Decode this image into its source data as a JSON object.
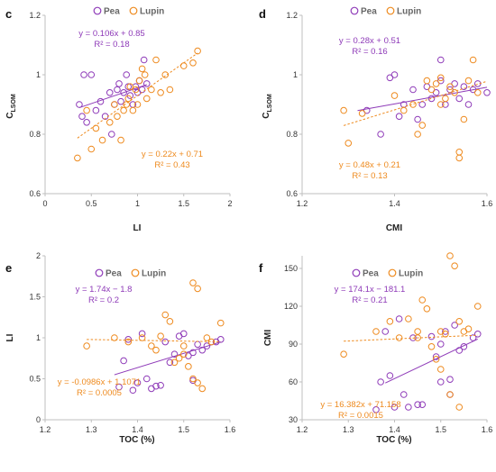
{
  "colors": {
    "pea": "#8e3ab8",
    "lupin": "#ee8a1e",
    "axis": "#bfbfbf"
  },
  "chart_data": [
    {
      "panel": "c",
      "type": "scatter",
      "xlabel": "LI",
      "ylabel": "C",
      "ylabel_sub": "LSOM",
      "xlim": [
        0,
        2
      ],
      "ylim": [
        0.6,
        1.2
      ],
      "xticks": [
        "0",
        "0.5",
        "1",
        "1.5",
        "2"
      ],
      "xtick_values": [
        0,
        0.5,
        1,
        1.5,
        2
      ],
      "yticks": [
        "0.6",
        "0.8",
        "1",
        "1.2"
      ],
      "ytick_values": [
        0.6,
        0.8,
        1,
        1.2
      ],
      "legend": [
        "Pea",
        "Lupin"
      ],
      "series": [
        {
          "name": "Pea",
          "color": "#8e3ab8",
          "x": [
            0.37,
            0.4,
            0.42,
            0.45,
            0.5,
            0.55,
            0.6,
            0.65,
            0.7,
            0.72,
            0.75,
            0.78,
            0.8,
            0.82,
            0.85,
            0.88,
            0.9,
            0.92,
            0.95,
            0.98,
            1.0,
            1.02,
            1.05,
            1.07,
            1.1
          ],
          "y": [
            0.9,
            0.86,
            1.0,
            0.84,
            1.0,
            0.88,
            0.91,
            0.86,
            0.94,
            0.8,
            0.9,
            0.95,
            0.97,
            0.91,
            0.94,
            1.0,
            0.96,
            0.93,
            0.9,
            0.96,
            0.94,
            0.98,
            0.95,
            1.05,
            0.97
          ],
          "fit": {
            "slope": 0.106,
            "intercept": 0.85,
            "x_range": [
              0.37,
              1.1
            ]
          },
          "equation": "y = 0.106x + 0.85",
          "r2": "R² = 0.18"
        },
        {
          "name": "Lupin",
          "color": "#ee8a1e",
          "x": [
            0.35,
            0.45,
            0.5,
            0.55,
            0.62,
            0.7,
            0.75,
            0.78,
            0.82,
            0.85,
            0.88,
            0.9,
            0.92,
            0.95,
            0.98,
            1.0,
            1.02,
            1.05,
            1.08,
            1.1,
            1.15,
            1.2,
            1.25,
            1.3,
            1.35,
            1.5,
            1.6,
            1.65
          ],
          "y": [
            0.72,
            0.88,
            0.75,
            0.82,
            0.78,
            0.84,
            0.9,
            0.86,
            0.78,
            0.88,
            0.9,
            0.92,
            0.96,
            0.88,
            0.95,
            0.9,
            0.98,
            1.02,
            1.0,
            0.92,
            0.95,
            1.05,
            0.94,
            1.0,
            0.95,
            1.03,
            1.04,
            1.08
          ],
          "fit": {
            "slope": 0.22,
            "intercept": 0.71,
            "x_range": [
              0.35,
              1.65
            ]
          },
          "equation": "y = 0.22x + 0.71",
          "r2": "R² = 0.43"
        }
      ]
    },
    {
      "panel": "d",
      "type": "scatter",
      "xlabel": "CMI",
      "ylabel": "C",
      "ylabel_sub": "LSOM",
      "xlim": [
        1.2,
        1.6
      ],
      "ylim": [
        0.6,
        1.2
      ],
      "xticks": [
        "1.2",
        "1.4",
        "1.6"
      ],
      "xtick_values": [
        1.2,
        1.4,
        1.6
      ],
      "yticks": [
        "0.6",
        "0.8",
        "1",
        "1.2"
      ],
      "ytick_values": [
        0.6,
        0.8,
        1,
        1.2
      ],
      "legend": [
        "Pea",
        "Lupin"
      ],
      "series": [
        {
          "name": "Pea",
          "color": "#8e3ab8",
          "x": [
            1.34,
            1.37,
            1.39,
            1.4,
            1.41,
            1.42,
            1.44,
            1.45,
            1.46,
            1.47,
            1.48,
            1.49,
            1.5,
            1.5,
            1.51,
            1.52,
            1.53,
            1.54,
            1.55,
            1.56,
            1.57,
            1.58,
            1.6
          ],
          "y": [
            0.88,
            0.8,
            0.99,
            1.0,
            0.86,
            0.9,
            0.95,
            0.85,
            0.9,
            0.96,
            0.92,
            0.94,
            0.98,
            1.05,
            0.9,
            0.95,
            0.97,
            0.92,
            0.96,
            0.9,
            0.95,
            0.97,
            0.94
          ],
          "fit": {
            "slope": 0.28,
            "intercept": 0.51,
            "x_range": [
              1.32,
              1.6
            ]
          },
          "equation": "y = 0.28x + 0.51",
          "r2": "R² = 0.16"
        },
        {
          "name": "Lupin",
          "color": "#ee8a1e",
          "x": [
            1.29,
            1.3,
            1.33,
            1.4,
            1.42,
            1.44,
            1.46,
            1.47,
            1.48,
            1.49,
            1.5,
            1.51,
            1.52,
            1.53,
            1.54,
            1.54,
            1.55,
            1.56,
            1.57,
            1.58,
            1.5,
            1.45
          ],
          "y": [
            0.88,
            0.77,
            0.87,
            0.93,
            0.88,
            0.9,
            0.83,
            0.98,
            0.95,
            0.97,
            0.9,
            0.92,
            0.96,
            0.94,
            0.72,
            0.74,
            0.85,
            0.98,
            1.05,
            0.94,
            0.99,
            0.8
          ],
          "fit": {
            "slope": 0.48,
            "intercept": 0.21,
            "x_range": [
              1.29,
              1.6
            ]
          },
          "equation": "y = 0.48x + 0.21",
          "r2": "R² = 0.13"
        }
      ]
    },
    {
      "panel": "e",
      "type": "scatter",
      "xlabel": "TOC (%)",
      "ylabel": "LI",
      "ylabel_sub": "",
      "xlim": [
        1.2,
        1.6
      ],
      "ylim": [
        0,
        2
      ],
      "xticks": [
        "1.2",
        "1.3",
        "1.4",
        "1.5",
        "1.6"
      ],
      "xtick_values": [
        1.2,
        1.3,
        1.4,
        1.5,
        1.6
      ],
      "yticks": [
        "0",
        "0.5",
        "1",
        "1.5",
        "2"
      ],
      "ytick_values": [
        0,
        0.5,
        1,
        1.5,
        2
      ],
      "legend": [
        "Pea",
        "Lupin"
      ],
      "series": [
        {
          "name": "Pea",
          "color": "#8e3ab8",
          "x": [
            1.36,
            1.37,
            1.38,
            1.39,
            1.4,
            1.41,
            1.42,
            1.43,
            1.44,
            1.45,
            1.46,
            1.47,
            1.48,
            1.49,
            1.5,
            1.51,
            1.52,
            1.52,
            1.53,
            1.54,
            1.55,
            1.57,
            1.58
          ],
          "y": [
            0.4,
            0.72,
            0.98,
            0.36,
            0.45,
            1.05,
            0.5,
            0.38,
            0.41,
            0.42,
            0.95,
            0.7,
            0.8,
            1.02,
            1.05,
            0.78,
            0.82,
            0.48,
            0.92,
            0.85,
            0.9,
            0.95,
            0.98
          ],
          "fit": {
            "slope": 1.74,
            "intercept": -1.8,
            "x_range": [
              1.35,
              1.58
            ]
          },
          "equation": "y = 1.74x − 1.8",
          "r2": "R² = 0.2"
        },
        {
          "name": "Lupin",
          "color": "#ee8a1e",
          "x": [
            1.29,
            1.35,
            1.38,
            1.41,
            1.43,
            1.45,
            1.46,
            1.47,
            1.48,
            1.49,
            1.5,
            1.51,
            1.52,
            1.52,
            1.53,
            1.54,
            1.55,
            1.56,
            1.58,
            1.5,
            1.53,
            1.44
          ],
          "y": [
            0.9,
            1.0,
            0.95,
            1.0,
            0.9,
            1.02,
            1.28,
            1.2,
            0.7,
            0.75,
            0.9,
            0.65,
            1.67,
            0.5,
            1.6,
            0.38,
            1.0,
            0.95,
            1.18,
            0.8,
            0.45,
            0.85
          ],
          "fit": {
            "slope": -0.0986,
            "intercept": 1.1071,
            "x_range": [
              1.29,
              1.58
            ]
          },
          "equation": "y = -0.0986x + 1.1071",
          "r2": "R² = 0.0005"
        }
      ]
    },
    {
      "panel": "f",
      "type": "scatter",
      "xlabel": "TOC (%)",
      "ylabel": "CMI",
      "ylabel_sub": "",
      "xlim": [
        1.2,
        1.6
      ],
      "ylim": [
        30,
        160
      ],
      "xticks": [
        "1.2",
        "1.3",
        "1.4",
        "1.5",
        "1.6"
      ],
      "xtick_values": [
        1.2,
        1.3,
        1.4,
        1.5,
        1.6
      ],
      "yticks": [
        "30",
        "60",
        "90",
        "120",
        "150"
      ],
      "ytick_values": [
        30,
        60,
        90,
        120,
        150
      ],
      "legend": [
        "Pea",
        "Lupin"
      ],
      "series": [
        {
          "name": "Pea",
          "color": "#8e3ab8",
          "x": [
            1.36,
            1.37,
            1.38,
            1.39,
            1.4,
            1.41,
            1.42,
            1.43,
            1.44,
            1.45,
            1.46,
            1.48,
            1.49,
            1.5,
            1.51,
            1.52,
            1.53,
            1.54,
            1.55,
            1.57,
            1.58,
            1.52,
            1.5
          ],
          "y": [
            38,
            60,
            100,
            65,
            40,
            110,
            50,
            40,
            95,
            42,
            42,
            96,
            80,
            90,
            100,
            50,
            105,
            85,
            88,
            95,
            98,
            62,
            60
          ],
          "fit": {
            "slope": 174.1,
            "intercept": -181.1,
            "x_range": [
              1.38,
              1.58
            ]
          },
          "equation": "y = 174.1x − 181.1",
          "r2": "R² = 0.21"
        },
        {
          "name": "Lupin",
          "color": "#ee8a1e",
          "x": [
            1.29,
            1.36,
            1.39,
            1.41,
            1.43,
            1.45,
            1.46,
            1.47,
            1.48,
            1.49,
            1.5,
            1.51,
            1.52,
            1.52,
            1.53,
            1.54,
            1.54,
            1.55,
            1.56,
            1.58,
            1.5,
            1.45
          ],
          "y": [
            82,
            100,
            108,
            95,
            110,
            100,
            125,
            118,
            88,
            78,
            100,
            98,
            160,
            50,
            152,
            40,
            108,
            100,
            102,
            120,
            70,
            95
          ],
          "fit": {
            "slope": 16.382,
            "intercept": 71.158,
            "x_range": [
              1.29,
              1.58
            ]
          },
          "equation": "y = 16.382x + 71.158",
          "r2": "R² = 0.0015"
        }
      ]
    }
  ]
}
